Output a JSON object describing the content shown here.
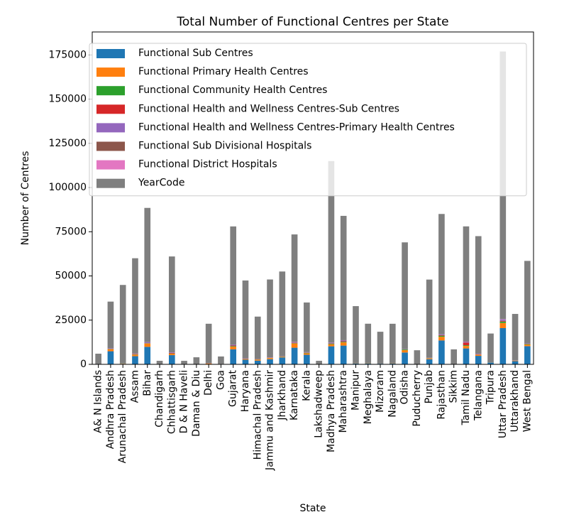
{
  "chart_data": {
    "type": "stacked_bar",
    "title": "Total Number of Functional Centres per State",
    "x_label": "State",
    "y_label": "Number of Centres",
    "categories": [
      "A& N Islands",
      "Andhra Pradesh",
      "Arunachal Pradesh",
      "Assam",
      "Bihar",
      "Chandigarh",
      "Chhattisgarh",
      "D & N Haveli",
      "Daman & Diu",
      "Delhi",
      "Goa",
      "Gujarat",
      "Haryana",
      "Himachal Pradesh",
      "Jammu and Kashmir",
      "Jharkhand",
      "Karnataka",
      "Kerala",
      "Lakshadweep",
      "Madhya Pradesh",
      "Maharashtra",
      "Manipur",
      "Meghalaya",
      "Mizoram",
      "Nagaland",
      "Odisha",
      "Puducherry",
      "Punjab",
      "Rajasthan",
      "Sikkim",
      "Tamil Nadu",
      "Telangana",
      "Tripura",
      "Uttar Pradesh",
      "Uttarakhand",
      "West Bengal"
    ],
    "series": [
      {
        "name": "Functional Sub Centres",
        "color": "#1f77b4",
        "values": [
          120,
          7400,
          300,
          4600,
          9900,
          16,
          5200,
          70,
          30,
          10,
          220,
          8500,
          2600,
          2100,
          2900,
          3900,
          9400,
          5400,
          14,
          10200,
          10600,
          420,
          440,
          370,
          400,
          6700,
          80,
          2900,
          13500,
          150,
          9000,
          4800,
          1000,
          20500,
          1800,
          10300
        ]
      },
      {
        "name": "Functional Primary Health Centres",
        "color": "#ff7f0e",
        "values": [
          22,
          1150,
          140,
          900,
          1900,
          0,
          800,
          10,
          4,
          500,
          25,
          1500,
          370,
          580,
          650,
          300,
          2400,
          850,
          4,
          1200,
          1800,
          85,
          110,
          57,
          130,
          1300,
          40,
          430,
          2100,
          25,
          1400,
          640,
          110,
          2900,
          250,
          900
        ]
      },
      {
        "name": "Functional Community Health Centres",
        "color": "#2ca02c",
        "values": [
          4,
          190,
          60,
          170,
          150,
          2,
          170,
          2,
          2,
          0,
          4,
          350,
          110,
          90,
          80,
          170,
          200,
          230,
          3,
          330,
          360,
          17,
          28,
          9,
          21,
          380,
          4,
          150,
          600,
          2,
          400,
          90,
          20,
          800,
          70,
          350
        ]
      },
      {
        "name": "Functional Health and Wellness Centres-Sub Centres",
        "color": "#d62728",
        "values": [
          50,
          100,
          0,
          200,
          50,
          0,
          300,
          0,
          0,
          0,
          0,
          300,
          100,
          60,
          100,
          100,
          200,
          100,
          0,
          100,
          300,
          0,
          0,
          0,
          0,
          50,
          0,
          100,
          300,
          0,
          1500,
          100,
          0,
          400,
          50,
          100
        ]
      },
      {
        "name": "Functional Health and Wellness Centres-Primary Health Centres",
        "color": "#9467bd",
        "values": [
          20,
          300,
          0,
          200,
          500,
          0,
          300,
          0,
          0,
          0,
          0,
          400,
          200,
          100,
          200,
          100,
          400,
          200,
          0,
          400,
          500,
          0,
          0,
          0,
          0,
          100,
          0,
          100,
          500,
          0,
          500,
          300,
          0,
          800,
          100,
          300
        ]
      },
      {
        "name": "Functional Sub Divisional Hospitals",
        "color": "#8c564b",
        "values": [
          0,
          30,
          0,
          13,
          45,
          0,
          20,
          0,
          0,
          0,
          0,
          40,
          30,
          60,
          40,
          13,
          150,
          90,
          0,
          80,
          90,
          0,
          0,
          0,
          0,
          30,
          0,
          40,
          20,
          0,
          300,
          50,
          0,
          0,
          20,
          40
        ]
      },
      {
        "name": "Functional District Hospitals",
        "color": "#e377c2",
        "values": [
          3,
          13,
          0,
          25,
          36,
          0,
          26,
          0,
          0,
          50,
          0,
          22,
          21,
          12,
          22,
          23,
          30,
          15,
          0,
          50,
          30,
          0,
          0,
          0,
          0,
          32,
          0,
          22,
          30,
          0,
          30,
          30,
          0,
          160,
          20,
          20
        ]
      },
      {
        "name": "YearCode",
        "color": "#7f7f7f",
        "values": [
          5800,
          26300,
          44400,
          53900,
          75900,
          1980,
          54200,
          1900,
          3950,
          22400,
          4200,
          66900,
          44000,
          24000,
          44000,
          47900,
          60700,
          28100,
          1970,
          102600,
          70300,
          32400,
          22400,
          18000,
          22400,
          60400,
          7850,
          44200,
          68000,
          8300,
          64900,
          66500,
          16300,
          151400,
          26200,
          46500
        ]
      }
    ],
    "ylim": [
      0,
      188000
    ],
    "yticks": [
      0,
      25000,
      50000,
      75000,
      100000,
      125000,
      150000,
      175000
    ],
    "legend": "upper left"
  }
}
